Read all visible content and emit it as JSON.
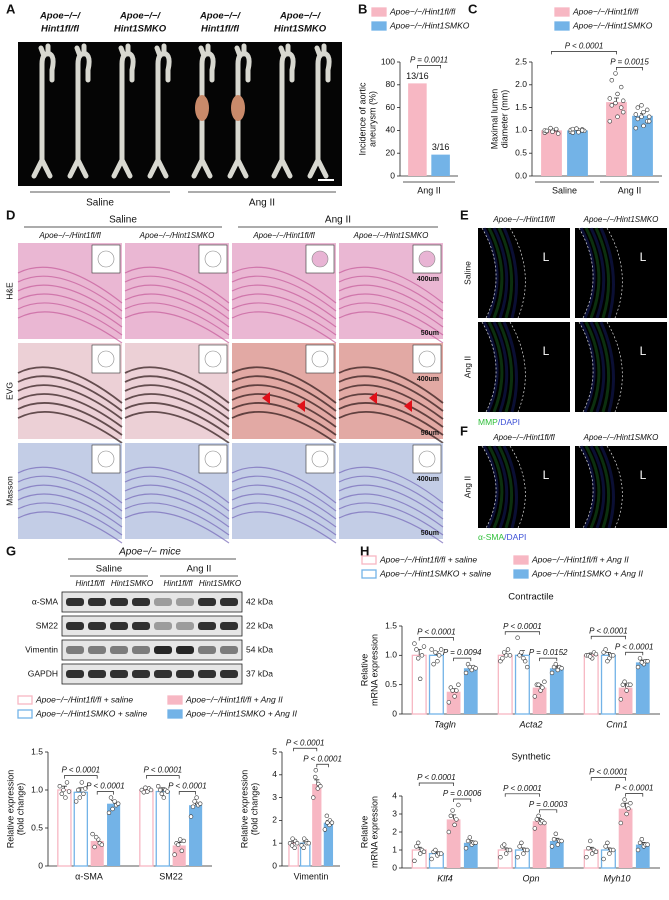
{
  "figure": {
    "A": {
      "letter": "A",
      "genotypes": [
        [
          "Apoe−/−/",
          "Hint1fl/fl"
        ],
        [
          "Apoe−/−/",
          "Hint1SMKO"
        ],
        [
          "Apoe−/−/",
          "Hint1fl/fl"
        ],
        [
          "Apoe−/−/",
          "Hint1SMKO"
        ]
      ],
      "groups": [
        "Saline",
        "Ang II"
      ]
    },
    "B": {
      "letter": "B"
    },
    "C": {
      "letter": "C"
    },
    "D": {
      "letter": "D",
      "groups": [
        "Saline",
        "Ang II"
      ],
      "genotypes": [
        "Apoe−/−/Hint1fl/fl",
        "Apoe−/−/Hint1SMKO",
        "Apoe−/−/Hint1fl/fl",
        "Apoe−/−/Hint1SMKO"
      ],
      "stains": [
        "H&E",
        "EVG",
        "Masson"
      ],
      "scale_inset": "400um",
      "scale_main": "50um"
    },
    "E": {
      "letter": "E",
      "genotypes": [
        "Apoe−/−/Hint1fl/fl",
        "Apoe−/−/Hint1SMKO"
      ],
      "conditions": [
        "Saline",
        "Ang II"
      ],
      "lumen": "L",
      "stain": [
        "MMP",
        "/DAPI"
      ]
    },
    "F": {
      "letter": "F",
      "genotypes": [
        "Apoe−/−/Hint1fl/fl",
        "Apoe−/−/Hint1SMKO"
      ],
      "condition": "Ang II",
      "lumen": "L",
      "stain": [
        "α-SMA",
        "/DAPI"
      ]
    },
    "G": {
      "letter": "G",
      "title": "Apoe−/− mice",
      "groups": [
        "Saline",
        "Ang II"
      ],
      "genotypes": [
        "Hint1fl/fl",
        "Hint1SMKO",
        "Hint1fl/fl",
        "Hint1SMKO"
      ],
      "proteins": [
        "α-SMA",
        "SM22",
        "Vimentin",
        "GAPDH"
      ],
      "weights": [
        "42 kDa",
        "22 kDa",
        "54 kDa",
        "37 kDa"
      ]
    },
    "H": {
      "letter": "H"
    }
  },
  "chart_data": [
    {
      "type": "bar",
      "categories": [
        "Ang II"
      ],
      "category_rule": true,
      "ylabel": [
        "Incidence of aortic",
        "aneurysm (%)"
      ],
      "ylim": [
        0,
        100
      ],
      "yticks": [
        0,
        20,
        40,
        60,
        80,
        100
      ],
      "series": [
        {
          "name": "Apoe−/−/Hint1fl/fl",
          "color": "#f7b7c3",
          "style": "solid",
          "values": [
            81.25
          ],
          "value_labels": [
            "13/16"
          ]
        },
        {
          "name": "Apoe−/−/Hint1SMKO",
          "color": "#73b3e7",
          "style": "solid",
          "values": [
            18.75
          ],
          "value_labels": [
            "3/16"
          ]
        }
      ],
      "comparisons": [
        {
          "from": [
            0,
            0
          ],
          "to": [
            0,
            1
          ],
          "label": "P = 0.0011"
        }
      ]
    },
    {
      "type": "bar",
      "categories": [
        "Saline",
        "Ang II"
      ],
      "category_rule": true,
      "ylabel": [
        "Maximal lumen",
        "diameter (mm)"
      ],
      "ylim": [
        0,
        2.5
      ],
      "yticks": [
        {
          "value": 0,
          "label": "0.0"
        },
        0.5,
        {
          "value": 1,
          "label": "1.0"
        },
        1.5,
        {
          "value": 2,
          "label": "2.0"
        },
        2.5
      ],
      "series": [
        {
          "name": "Apoe−/−/Hint1fl/fl",
          "color": "#f7b7c3",
          "style": "solid",
          "values": [
            1.0,
            1.62
          ],
          "errors": [
            0.02,
            0.09
          ],
          "points": [
            [
              0.95,
              1.0,
              1.02,
              0.98,
              1.05,
              0.93,
              1.0,
              0.97,
              1.03,
              0.99
            ],
            [
              1.2,
              1.3,
              1.5,
              1.55,
              1.6,
              1.65,
              1.7,
              1.8,
              1.95,
              2.1,
              2.25,
              1.4
            ]
          ]
        },
        {
          "name": "Apoe−/−/Hint1SMKO",
          "color": "#73b3e7",
          "style": "solid",
          "values": [
            1.0,
            1.32
          ],
          "errors": [
            0.02,
            0.05
          ],
          "points": [
            [
              0.97,
              1.0,
              1.02,
              0.95,
              1.04,
              0.99,
              1.01,
              0.96,
              1.0,
              1.03
            ],
            [
              1.05,
              1.1,
              1.2,
              1.25,
              1.3,
              1.3,
              1.35,
              1.4,
              1.45,
              1.5,
              1.55,
              1.2
            ]
          ]
        }
      ],
      "comparisons": [
        {
          "from": [
            1,
            0
          ],
          "to": [
            1,
            1
          ],
          "label": "P = 0.0015"
        },
        {
          "from": [
            0,
            0
          ],
          "to": [
            1,
            0
          ],
          "label": "P < 0.0001"
        }
      ]
    },
    {
      "type": "bar",
      "categories": [
        "α-SMA",
        "SM22"
      ],
      "ylabel": [
        "Relative expression",
        "(fold change)"
      ],
      "ylim": [
        0,
        1.5
      ],
      "yticks": [
        0,
        0.5,
        {
          "value": 1,
          "label": "1.0"
        },
        1.5
      ],
      "series": [
        {
          "name": "Apoe−/−/Hint1fl/fl + saline",
          "color": "#f7b7c3",
          "style": "open",
          "values": [
            1.0,
            1.0
          ],
          "errors": [
            0.05,
            0.02
          ],
          "points": [
            [
              1.05,
              0.9,
              1.1,
              0.95,
              1.0,
              0.98
            ],
            [
              1.0,
              0.98,
              1.02,
              0.97,
              1.03,
              1.0
            ]
          ]
        },
        {
          "name": "Apoe−/−/Hint1SMKO + saline",
          "color": "#73b3e7",
          "style": "open",
          "values": [
            0.97,
            0.98
          ],
          "errors": [
            0.06,
            0.05
          ],
          "points": [
            [
              0.85,
              1.1,
              0.95,
              1.0,
              0.9,
              1.02
            ],
            [
              1.05,
              0.9,
              1.0,
              1.0,
              0.95,
              0.98
            ]
          ]
        },
        {
          "name": "Apoe−/−/Hint1fl/fl + Ang II",
          "color": "#f7b7c3",
          "style": "solid",
          "values": [
            0.33,
            0.27
          ],
          "errors": [
            0.03,
            0.04
          ],
          "points": [
            [
              0.42,
              0.35,
              0.3,
              0.25,
              0.38,
              0.28
            ],
            [
              0.15,
              0.35,
              0.2,
              0.3,
              0.28,
              0.33
            ]
          ]
        },
        {
          "name": "Apoe−/−/Hint1SMKO + Ang II",
          "color": "#73b3e7",
          "style": "solid",
          "values": [
            0.82,
            0.8
          ],
          "errors": [
            0.04,
            0.04
          ],
          "points": [
            [
              0.7,
              0.85,
              0.8,
              0.9,
              0.75,
              0.82
            ],
            [
              0.65,
              0.9,
              0.8,
              0.78,
              0.85,
              0.82
            ]
          ]
        }
      ],
      "comparisons": [
        {
          "from": [
            0,
            2
          ],
          "to": [
            0,
            3
          ],
          "label": "P < 0.0001"
        },
        {
          "from": [
            0,
            0
          ],
          "to": [
            0,
            2
          ],
          "label": "P < 0.0001"
        },
        {
          "from": [
            1,
            2
          ],
          "to": [
            1,
            3
          ],
          "label": "P < 0.0001"
        },
        {
          "from": [
            1,
            0
          ],
          "to": [
            1,
            2
          ],
          "label": "P < 0.0001"
        }
      ]
    },
    {
      "type": "bar",
      "categories": [
        "Vimentin"
      ],
      "ylabel": [
        "Relative expression",
        "(fold change)"
      ],
      "ylim": [
        0,
        5
      ],
      "yticks": [
        0,
        1,
        2,
        3,
        4,
        5
      ],
      "series": [
        {
          "color": "#f7b7c3",
          "style": "open",
          "values": [
            1.0
          ],
          "errors": [
            0.06
          ],
          "points": [
            [
              1.0,
              0.8,
              1.1,
              0.9,
              1.2,
              1.0
            ]
          ]
        },
        {
          "color": "#73b3e7",
          "style": "open",
          "values": [
            1.0
          ],
          "errors": [
            0.06
          ],
          "points": [
            [
              0.9,
              1.1,
              1.0,
              0.8,
              1.2,
              1.0
            ]
          ]
        },
        {
          "color": "#f7b7c3",
          "style": "solid",
          "values": [
            3.6
          ],
          "errors": [
            0.18
          ],
          "points": [
            [
              3.0,
              3.4,
              3.6,
              3.9,
              4.2,
              3.5
            ]
          ]
        },
        {
          "color": "#73b3e7",
          "style": "solid",
          "values": [
            1.9
          ],
          "errors": [
            0.09
          ],
          "points": [
            [
              1.6,
              1.8,
              2.0,
              2.2,
              1.9,
              1.9
            ]
          ]
        }
      ],
      "comparisons": [
        {
          "from": [
            0,
            2
          ],
          "to": [
            0,
            3
          ],
          "label": "P < 0.0001"
        },
        {
          "from": [
            0,
            0
          ],
          "to": [
            0,
            2
          ],
          "label": "P < 0.0001"
        }
      ]
    },
    {
      "type": "bar",
      "title": "Contractile",
      "categories": [
        "Tagln",
        "Acta2",
        "Cnn1"
      ],
      "italic_categories": true,
      "ylabel": [
        "Relative",
        "mRNA expression"
      ],
      "ylim": [
        0,
        1.5
      ],
      "yticks": [
        0,
        0.5,
        {
          "value": 1,
          "label": "1.0"
        },
        1.5
      ],
      "series": [
        {
          "name": "Apoe−/−/Hint1fl/fl + saline",
          "color": "#f7b7c3",
          "style": "open",
          "values": [
            1.0,
            1.0,
            1.0
          ],
          "errors": [
            0.1,
            0.07,
            0.04
          ],
          "points": [
            [
              1.2,
              0.6,
              1.0,
              1.1,
              0.95,
              1.15
            ],
            [
              0.9,
              1.0,
              1.1,
              0.95,
              1.05,
              1.0
            ],
            [
              1.0,
              0.95,
              1.05,
              1.0,
              0.98,
              1.02
            ]
          ]
        },
        {
          "name": "Apoe−/−/Hint1SMKO + saline",
          "color": "#73b3e7",
          "style": "open",
          "values": [
            1.0,
            1.0,
            1.0
          ],
          "errors": [
            0.06,
            0.08,
            0.05
          ],
          "points": [
            [
              1.1,
              0.9,
              1.0,
              0.85,
              1.05,
              1.1
            ],
            [
              1.3,
              0.95,
              0.9,
              1.0,
              1.05,
              0.8
            ],
            [
              1.05,
              0.95,
              1.0,
              1.1,
              0.9,
              1.0
            ]
          ]
        },
        {
          "name": "Apoe−/−/Hint1fl/fl + Ang II",
          "color": "#f7b7c3",
          "style": "solid",
          "values": [
            0.38,
            0.45,
            0.45
          ],
          "errors": [
            0.05,
            0.05,
            0.06
          ],
          "points": [
            [
              0.2,
              0.3,
              0.4,
              0.45,
              0.4,
              0.5
            ],
            [
              0.3,
              0.4,
              0.45,
              0.5,
              0.5,
              0.55
            ],
            [
              0.25,
              0.4,
              0.5,
              0.5,
              0.55,
              0.5
            ]
          ]
        },
        {
          "name": "Apoe−/−/Hint1SMKO + Ang II",
          "color": "#73b3e7",
          "style": "solid",
          "values": [
            0.78,
            0.78,
            0.88
          ],
          "errors": [
            0.04,
            0.04,
            0.04
          ],
          "points": [
            [
              0.7,
              0.75,
              0.8,
              0.85,
              0.8,
              0.78
            ],
            [
              0.7,
              0.75,
              0.8,
              0.8,
              0.85,
              0.78
            ],
            [
              0.8,
              0.85,
              0.9,
              0.95,
              0.88,
              0.9
            ]
          ]
        }
      ],
      "comparisons": [
        {
          "from": [
            0,
            2
          ],
          "to": [
            0,
            3
          ],
          "label": "P = 0.0094"
        },
        {
          "from": [
            0,
            0
          ],
          "to": [
            0,
            2
          ],
          "label": "P < 0.0001"
        },
        {
          "from": [
            1,
            2
          ],
          "to": [
            1,
            3
          ],
          "label": "P = 0.0152"
        },
        {
          "from": [
            1,
            0
          ],
          "to": [
            1,
            2
          ],
          "label": "P < 0.0001"
        },
        {
          "from": [
            2,
            2
          ],
          "to": [
            2,
            3
          ],
          "label": "P < 0.0001"
        },
        {
          "from": [
            2,
            0
          ],
          "to": [
            2,
            2
          ],
          "label": "P < 0.0001"
        }
      ]
    },
    {
      "type": "bar",
      "title": "Synthetic",
      "categories": [
        "Klf4",
        "Opn",
        "Myh10"
      ],
      "italic_categories": true,
      "ylabel": [
        "Relative",
        "mRNA expression"
      ],
      "ylim": [
        0,
        4
      ],
      "yticks": [
        0,
        1,
        2,
        3,
        4
      ],
      "series": [
        {
          "color": "#f7b7c3",
          "style": "open",
          "values": [
            1.0,
            1.0,
            1.0
          ],
          "errors": [
            0.15,
            0.12,
            0.15
          ],
          "points": [
            [
              0.4,
              0.8,
              1.0,
              1.2,
              1.4,
              0.9
            ],
            [
              0.6,
              0.8,
              1.0,
              1.2,
              1.3,
              1.0
            ],
            [
              0.6,
              0.8,
              1.0,
              1.1,
              1.5,
              0.9
            ]
          ]
        },
        {
          "color": "#73b3e7",
          "style": "open",
          "values": [
            0.8,
            1.0,
            1.0
          ],
          "errors": [
            0.1,
            0.12,
            0.12
          ],
          "points": [
            [
              0.5,
              0.7,
              0.8,
              0.9,
              1.0,
              0.8
            ],
            [
              0.6,
              0.8,
              1.0,
              1.2,
              1.4,
              1.0
            ],
            [
              0.5,
              0.8,
              1.0,
              1.2,
              1.4,
              1.0
            ]
          ]
        },
        {
          "color": "#f7b7c3",
          "style": "solid",
          "values": [
            2.7,
            2.6,
            3.3
          ],
          "errors": [
            0.25,
            0.15,
            0.3
          ],
          "points": [
            [
              2.0,
              2.4,
              2.7,
              2.9,
              3.2,
              3.5
            ],
            [
              2.2,
              2.5,
              2.6,
              2.7,
              2.9,
              2.5
            ],
            [
              2.5,
              3.0,
              3.3,
              3.5,
              3.8,
              3.6
            ]
          ]
        },
        {
          "color": "#73b3e7",
          "style": "solid",
          "values": [
            1.4,
            1.5,
            1.3
          ],
          "errors": [
            0.12,
            0.15,
            0.12
          ],
          "points": [
            [
              1.1,
              1.3,
              1.4,
              1.5,
              1.7,
              1.4
            ],
            [
              1.2,
              1.3,
              1.5,
              1.6,
              1.9,
              1.5
            ],
            [
              1.0,
              1.2,
              1.3,
              1.4,
              1.6,
              1.3
            ]
          ]
        }
      ],
      "comparisons": [
        {
          "from": [
            0,
            2
          ],
          "to": [
            0,
            3
          ],
          "label": "P = 0.0006"
        },
        {
          "from": [
            0,
            0
          ],
          "to": [
            0,
            2
          ],
          "label": "P < 0.0001"
        },
        {
          "from": [
            1,
            2
          ],
          "to": [
            1,
            3
          ],
          "label": "P = 0.0003"
        },
        {
          "from": [
            1,
            0
          ],
          "to": [
            1,
            2
          ],
          "label": "P < 0.0001"
        },
        {
          "from": [
            2,
            2
          ],
          "to": [
            2,
            3
          ],
          "label": "P < 0.0001"
        },
        {
          "from": [
            2,
            0
          ],
          "to": [
            2,
            2
          ],
          "label": "P < 0.0001"
        }
      ]
    }
  ]
}
